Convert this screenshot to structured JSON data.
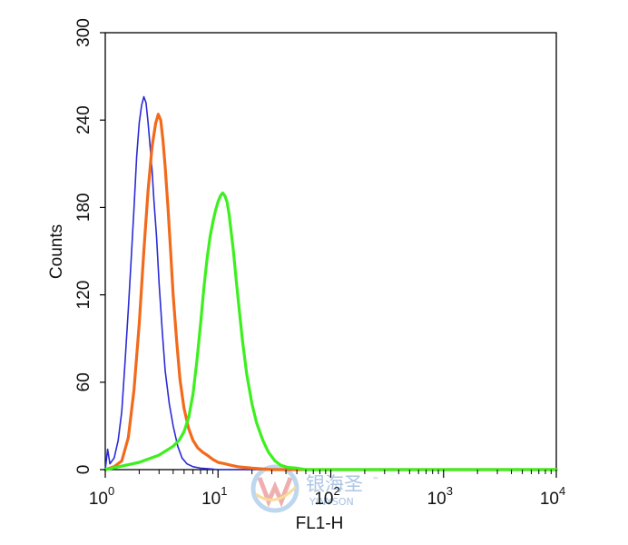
{
  "chart_data": {
    "type": "line",
    "title": "",
    "xlabel": "FL1-H",
    "ylabel": "Counts",
    "xscale": "log",
    "xlim": [
      1,
      10000
    ],
    "ylim": [
      0,
      300
    ],
    "grid": false,
    "legend": "none",
    "x_ticks": [
      {
        "value": 1,
        "base": "10",
        "exp": "0"
      },
      {
        "value": 10,
        "base": "10",
        "exp": "1"
      },
      {
        "value": 100,
        "base": "10",
        "exp": "2"
      },
      {
        "value": 1000,
        "base": "10",
        "exp": "3"
      },
      {
        "value": 10000,
        "base": "10",
        "exp": "4"
      }
    ],
    "y_ticks": [
      {
        "value": 0,
        "label": "0"
      },
      {
        "value": 60,
        "label": "60"
      },
      {
        "value": 120,
        "label": "120"
      },
      {
        "value": 180,
        "label": "180"
      },
      {
        "value": 240,
        "label": "240"
      },
      {
        "value": 300,
        "label": "300"
      }
    ],
    "series": [
      {
        "color": "#2b2bd6",
        "stroke_width": 1.6,
        "x": [
          1.0,
          1.05,
          1.1,
          1.2,
          1.3,
          1.4,
          1.5,
          1.6,
          1.7,
          1.8,
          1.9,
          2.0,
          2.1,
          2.2,
          2.3,
          2.4,
          2.5,
          2.6,
          2.7,
          2.85,
          3.0,
          3.2,
          3.4,
          3.7,
          4.0,
          4.4,
          4.8,
          5.3,
          6.0,
          7.0,
          8.5,
          10,
          20,
          50,
          100,
          1000,
          10000
        ],
        "y": [
          0,
          14,
          4,
          8,
          20,
          40,
          75,
          110,
          145,
          180,
          215,
          238,
          250,
          256,
          252,
          238,
          222,
          205,
          185,
          160,
          128,
          95,
          68,
          45,
          30,
          16,
          8,
          4,
          2,
          1,
          0.5,
          0,
          0,
          0,
          0,
          0,
          0
        ]
      },
      {
        "color": "#f26a1b",
        "stroke_width": 3.2,
        "x": [
          1.0,
          1.2,
          1.4,
          1.6,
          1.8,
          2.0,
          2.2,
          2.4,
          2.6,
          2.8,
          2.95,
          3.1,
          3.25,
          3.4,
          3.6,
          3.8,
          4.0,
          4.3,
          4.6,
          5.0,
          5.5,
          6.0,
          6.6,
          7.3,
          8.0,
          9.0,
          10.0,
          11.5,
          13.0,
          15.0,
          20,
          30,
          100,
          1000,
          10000
        ],
        "y": [
          0,
          2,
          6,
          22,
          55,
          100,
          150,
          192,
          222,
          238,
          244,
          240,
          226,
          208,
          180,
          150,
          120,
          88,
          62,
          42,
          28,
          20,
          15,
          12,
          10,
          7,
          5,
          4,
          3,
          2,
          1,
          0,
          0,
          0,
          0
        ]
      },
      {
        "color": "#3cf01e",
        "stroke_width": 3.2,
        "x": [
          1.0,
          2.0,
          3.0,
          4.0,
          4.5,
          5.0,
          5.5,
          6.0,
          6.5,
          7.0,
          7.5,
          8.0,
          8.5,
          9.0,
          9.5,
          10.0,
          10.5,
          11.0,
          11.5,
          12.0,
          12.5,
          13.0,
          13.7,
          14.5,
          15.5,
          16.5,
          18.0,
          20.0,
          22.0,
          25.0,
          28.0,
          32.0,
          36.0,
          42.0,
          50.0,
          60.0,
          100,
          1000,
          10000
        ],
        "y": [
          0,
          5,
          10,
          16,
          20,
          26,
          36,
          52,
          75,
          100,
          125,
          145,
          160,
          170,
          178,
          184,
          188,
          190,
          188,
          184,
          176,
          165,
          150,
          130,
          108,
          88,
          65,
          45,
          32,
          20,
          12,
          6,
          3,
          1.5,
          1,
          0,
          0,
          0,
          0
        ]
      }
    ]
  },
  "watermark": {
    "text_cn": "银海圣",
    "text_en": "YINYSON",
    "tm": "™"
  }
}
